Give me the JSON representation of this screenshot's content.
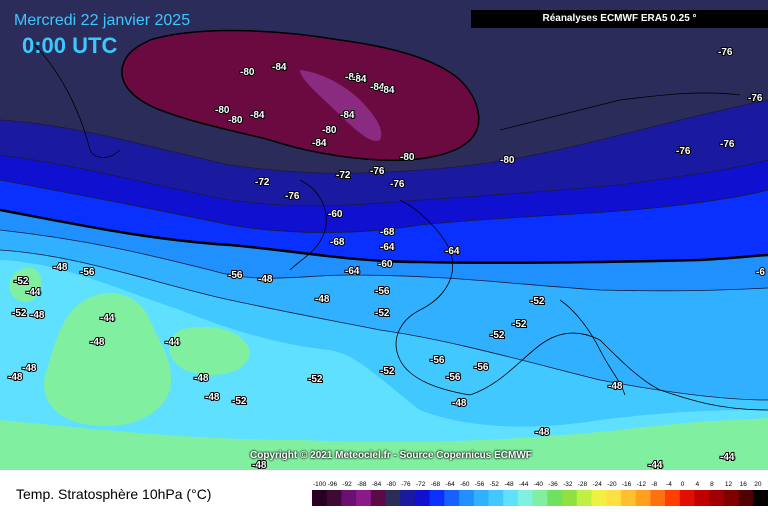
{
  "header": {
    "date": "Mercredi 22 janvier 2025",
    "time": "0:00 UTC",
    "source": "Réanalyses ECMWF ERA5 0.25 °"
  },
  "footer": {
    "copyright": "Copyright © 2021 Meteociel.fr - Source Copernicus ECMWF",
    "caption": "Temp. Stratosphère 10hPa (°C)"
  },
  "legend": {
    "ticks": [
      "-100",
      "-96",
      "-92",
      "-88",
      "-84",
      "-80",
      "-76",
      "-72",
      "-68",
      "-64",
      "-60",
      "-56",
      "-52",
      "-48",
      "-44",
      "-40",
      "-36",
      "-32",
      "-28",
      "-24",
      "-20",
      "-16",
      "-12",
      "-8",
      "-4",
      "0",
      "4",
      "8",
      "12",
      "16",
      "20"
    ],
    "colors": [
      "#2a0022",
      "#3c0a34",
      "#6a1070",
      "#8a1a8a",
      "#5a0a48",
      "#2c2c5a",
      "#1a1aa0",
      "#1010d0",
      "#0a30ff",
      "#1860ff",
      "#2090ff",
      "#30b0ff",
      "#40c8ff",
      "#60e0ff",
      "#80f0e0",
      "#80f0a0",
      "#70e060",
      "#90e040",
      "#c0f040",
      "#f0f040",
      "#ffe040",
      "#ffc030",
      "#ffa020",
      "#ff7010",
      "#ff4000",
      "#e01000",
      "#c00000",
      "#a00000",
      "#800000",
      "#500000",
      "#000000"
    ]
  },
  "map_labels": [
    "-84",
    "-80",
    "-84",
    "-84",
    "-84",
    "-84",
    "-80",
    "-80",
    "-84",
    "-80",
    "-84",
    "-84",
    "-80",
    "-80",
    "-76",
    "-76",
    "-76",
    "-76",
    "-76",
    "-76",
    "-72",
    "-72",
    "-76",
    "-60",
    "-68",
    "-68",
    "-64",
    "-64",
    "-60",
    "-64",
    "-56",
    "-48",
    "-52",
    "-44",
    "-52",
    "-48",
    "-56",
    "-48",
    "-48",
    "-44",
    "-48",
    "-44",
    "-48",
    "-48",
    "-48",
    "-48",
    "-52",
    "-56",
    "-52",
    "-52",
    "-52",
    "-52",
    "-56",
    "-56",
    "-56",
    "-52",
    "-52",
    "-48",
    "-48",
    "-48",
    "-48",
    "-44",
    "-44",
    "-6"
  ],
  "colors": {
    "title": "#39c8ff",
    "vortex_core": "#6a0a40",
    "vortex_inner": "#8a2a80",
    "band_dark": "#2c2c5a"
  }
}
